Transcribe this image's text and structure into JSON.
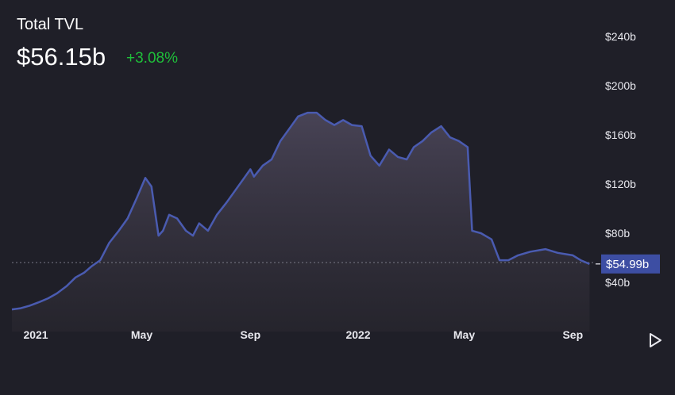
{
  "header": {
    "title": "Total TVL",
    "value": "$56.15b",
    "change": "+3.08%",
    "change_color": "#1fbf3a"
  },
  "colors": {
    "background": "#1f1f28",
    "line": "#4a5bb0",
    "badge": "#3d4ea3",
    "reference_line": "#7a7a88"
  },
  "controls": {
    "play_icon": "play-icon"
  },
  "chart_data": {
    "type": "area",
    "title": "Total TVL",
    "xlabel": "",
    "ylabel": "",
    "x_unit": "date",
    "y_unit": "billion USD",
    "xlim": [
      "2020-12-05",
      "2022-09-25"
    ],
    "ylim": [
      0,
      240
    ],
    "y_ticks": [
      40,
      80,
      120,
      160,
      200,
      240
    ],
    "y_tick_labels": [
      "$40b",
      "$80b",
      "$120b",
      "$160b",
      "$200b",
      "$240b"
    ],
    "x_ticks": [
      "2021-01-01",
      "2021-05-01",
      "2021-09-01",
      "2022-01-01",
      "2022-05-01",
      "2022-09-01"
    ],
    "x_tick_labels": [
      "2021",
      "May",
      "Sep",
      "2022",
      "May",
      "Sep"
    ],
    "current_value": 54.99,
    "current_label": "$54.99b",
    "reference_line": 56.15,
    "grid": false,
    "legend": "none",
    "series": [
      {
        "x": [
          "2020-12-05",
          "2020-12-15",
          "2020-12-25",
          "2021-01-05",
          "2021-01-15",
          "2021-01-25",
          "2021-02-05",
          "2021-02-15",
          "2021-02-25",
          "2021-03-05",
          "2021-03-15",
          "2021-03-25",
          "2021-04-05",
          "2021-04-15",
          "2021-04-25",
          "2021-05-05",
          "2021-05-12",
          "2021-05-20",
          "2021-05-25",
          "2021-06-01",
          "2021-06-10",
          "2021-06-20",
          "2021-06-28",
          "2021-07-05",
          "2021-07-15",
          "2021-07-25",
          "2021-08-05",
          "2021-08-15",
          "2021-08-25",
          "2021-09-01",
          "2021-09-05",
          "2021-09-15",
          "2021-09-25",
          "2021-10-05",
          "2021-10-15",
          "2021-10-25",
          "2021-11-05",
          "2021-11-15",
          "2021-11-25",
          "2021-12-05",
          "2021-12-15",
          "2021-12-25",
          "2022-01-05",
          "2022-01-15",
          "2022-01-25",
          "2022-02-05",
          "2022-02-15",
          "2022-02-25",
          "2022-03-05",
          "2022-03-15",
          "2022-03-25",
          "2022-04-05",
          "2022-04-15",
          "2022-04-25",
          "2022-05-05",
          "2022-05-10",
          "2022-05-20",
          "2022-06-01",
          "2022-06-10",
          "2022-06-20",
          "2022-07-01",
          "2022-07-15",
          "2022-08-01",
          "2022-08-15",
          "2022-09-01",
          "2022-09-10",
          "2022-09-20"
        ],
        "values": [
          18,
          19,
          21,
          24,
          27,
          31,
          37,
          44,
          48,
          53,
          58,
          72,
          82,
          92,
          108,
          125,
          118,
          78,
          82,
          95,
          92,
          82,
          78,
          88,
          82,
          95,
          105,
          115,
          125,
          132,
          126,
          135,
          140,
          155,
          165,
          175,
          178,
          178,
          172,
          168,
          172,
          168,
          167,
          143,
          135,
          148,
          142,
          140,
          150,
          155,
          162,
          167,
          158,
          155,
          150,
          82,
          80,
          75,
          58,
          58,
          62,
          65,
          67,
          64,
          62,
          58,
          55
        ]
      }
    ]
  }
}
